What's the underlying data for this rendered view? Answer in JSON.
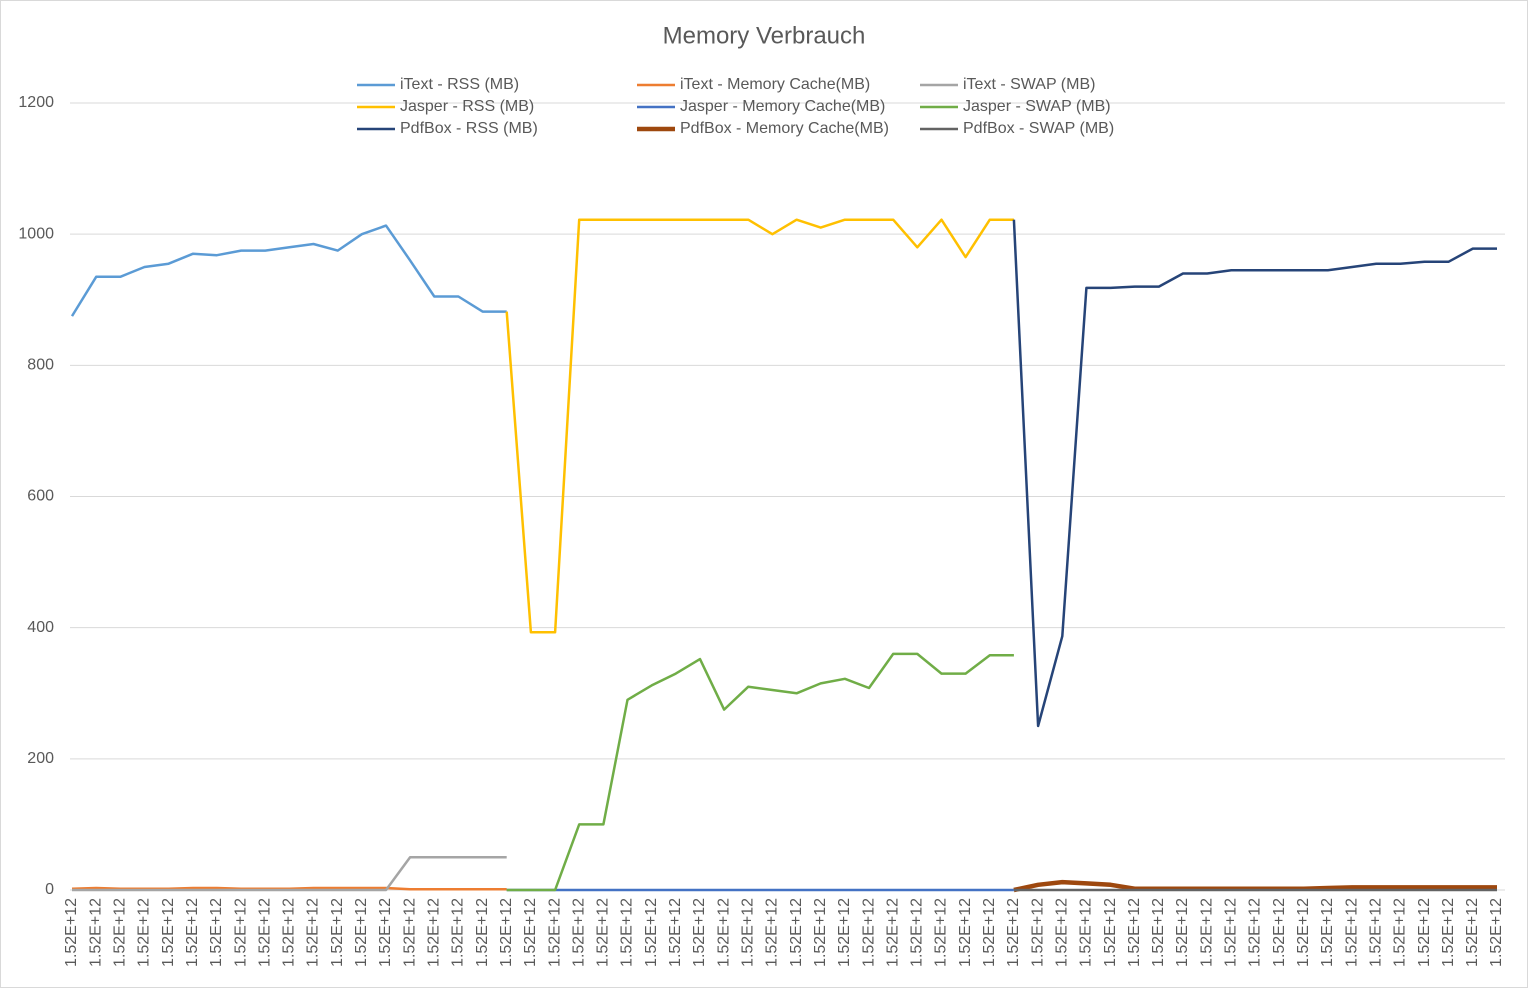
{
  "chart_data": {
    "type": "line",
    "title": "Memory Verbrauch",
    "categories": [
      "1.52E+12",
      "1.52E+12",
      "1.52E+12",
      "1.52E+12",
      "1.52E+12",
      "1.52E+12",
      "1.52E+12",
      "1.52E+12",
      "1.52E+12",
      "1.52E+12",
      "1.52E+12",
      "1.52E+12",
      "1.52E+12",
      "1.52E+12",
      "1.52E+12",
      "1.52E+12",
      "1.52E+12",
      "1.52E+12",
      "1.52E+12",
      "1.52E+12",
      "1.52E+12",
      "1.52E+12",
      "1.52E+12",
      "1.52E+12",
      "1.52E+12",
      "1.52E+12",
      "1.52E+12",
      "1.52E+12",
      "1.52E+12",
      "1.52E+12",
      "1.52E+12",
      "1.52E+12",
      "1.52E+12",
      "1.52E+12",
      "1.52E+12",
      "1.52E+12",
      "1.52E+12",
      "1.52E+12",
      "1.52E+12",
      "1.52E+12",
      "1.52E+12",
      "1.52E+12",
      "1.52E+12",
      "1.52E+12",
      "1.52E+12",
      "1.52E+12",
      "1.52E+12",
      "1.52E+12",
      "1.52E+12",
      "1.52E+12",
      "1.52E+12",
      "1.52E+12",
      "1.52E+12",
      "1.52E+12",
      "1.52E+12",
      "1.52E+12",
      "1.52E+12",
      "1.52E+12",
      "1.52E+12",
      "1.52E+12"
    ],
    "series": [
      {
        "name": "iText - RSS (MB)",
        "color": "#5b9bd5",
        "values": [
          875,
          935,
          935,
          950,
          955,
          970,
          968,
          975,
          975,
          980,
          985,
          975,
          1000,
          1013,
          960,
          905,
          905,
          882,
          882,
          null,
          null,
          null,
          null,
          null,
          null,
          null,
          null,
          null,
          null,
          null,
          null,
          null,
          null,
          null,
          null,
          null,
          null,
          null,
          null,
          null,
          null,
          null,
          null,
          null,
          null,
          null,
          null,
          null,
          null,
          null,
          null,
          null,
          null,
          null,
          null,
          null,
          null,
          null,
          null,
          null
        ]
      },
      {
        "name": "iText - Memory Cache(MB)",
        "color": "#ed7d31",
        "values": [
          2,
          3,
          2,
          2,
          2,
          3,
          3,
          2,
          2,
          2,
          3,
          3,
          3,
          3,
          1,
          1,
          1,
          1,
          1,
          null,
          null,
          null,
          null,
          null,
          null,
          null,
          null,
          null,
          null,
          null,
          null,
          null,
          null,
          null,
          null,
          null,
          null,
          null,
          null,
          null,
          null,
          null,
          null,
          null,
          null,
          null,
          null,
          null,
          null,
          null,
          null,
          null,
          null,
          null,
          null,
          null,
          null,
          null,
          null,
          null
        ]
      },
      {
        "name": "iText - SWAP (MB)",
        "color": "#a5a5a5",
        "values": [
          0,
          0,
          0,
          0,
          0,
          0,
          0,
          0,
          0,
          0,
          0,
          0,
          0,
          0,
          50,
          50,
          50,
          50,
          50,
          null,
          null,
          null,
          null,
          null,
          null,
          null,
          null,
          null,
          null,
          null,
          null,
          null,
          null,
          null,
          null,
          null,
          null,
          null,
          null,
          null,
          null,
          null,
          null,
          null,
          null,
          null,
          null,
          null,
          null,
          null,
          null,
          null,
          null,
          null,
          null,
          null,
          null,
          null,
          null,
          null
        ]
      },
      {
        "name": "Jasper - RSS (MB)",
        "color": "#ffc000",
        "values": [
          null,
          null,
          null,
          null,
          null,
          null,
          null,
          null,
          null,
          null,
          null,
          null,
          null,
          null,
          null,
          null,
          null,
          null,
          882,
          393,
          393,
          1022,
          1022,
          1022,
          1022,
          1022,
          1022,
          1022,
          1022,
          1000,
          1022,
          1010,
          1022,
          1022,
          1022,
          980,
          1022,
          965,
          1022,
          1022,
          null,
          null,
          null,
          null,
          null,
          null,
          null,
          null,
          null,
          null,
          null,
          null,
          null,
          null,
          null,
          null,
          null,
          null,
          null,
          null
        ]
      },
      {
        "name": "Jasper - Memory Cache(MB)",
        "color": "#4472c4",
        "values": [
          null,
          null,
          null,
          null,
          null,
          null,
          null,
          null,
          null,
          null,
          null,
          null,
          null,
          null,
          null,
          null,
          null,
          null,
          0,
          0,
          0,
          0,
          0,
          0,
          0,
          0,
          0,
          0,
          0,
          0,
          0,
          0,
          0,
          0,
          0,
          0,
          0,
          0,
          0,
          0,
          null,
          null,
          null,
          null,
          null,
          null,
          null,
          null,
          null,
          null,
          null,
          null,
          null,
          null,
          null,
          null,
          null,
          null,
          null,
          null
        ]
      },
      {
        "name": "Jasper - SWAP (MB)",
        "color": "#70ad47",
        "values": [
          null,
          null,
          null,
          null,
          null,
          null,
          null,
          null,
          null,
          null,
          null,
          null,
          null,
          null,
          null,
          null,
          null,
          null,
          0,
          0,
          0,
          100,
          100,
          290,
          312,
          330,
          352,
          275,
          310,
          305,
          300,
          315,
          322,
          308,
          360,
          360,
          330,
          330,
          358,
          358,
          null,
          null,
          null,
          null,
          null,
          null,
          null,
          null,
          null,
          null,
          null,
          null,
          null,
          null,
          null,
          null,
          null,
          null,
          null,
          null
        ]
      },
      {
        "name": "PdfBox - RSS (MB)",
        "color": "#264478",
        "values": [
          null,
          null,
          null,
          null,
          null,
          null,
          null,
          null,
          null,
          null,
          null,
          null,
          null,
          null,
          null,
          null,
          null,
          null,
          null,
          null,
          null,
          null,
          null,
          null,
          null,
          null,
          null,
          null,
          null,
          null,
          null,
          null,
          null,
          null,
          null,
          null,
          null,
          null,
          null,
          1022,
          250,
          387,
          918,
          918,
          920,
          920,
          940,
          940,
          945,
          945,
          945,
          945,
          945,
          950,
          955,
          955,
          958,
          958,
          978,
          978
        ]
      },
      {
        "name": "PdfBox - Memory Cache(MB)",
        "color": "#9e480e",
        "values": [
          null,
          null,
          null,
          null,
          null,
          null,
          null,
          null,
          null,
          null,
          null,
          null,
          null,
          null,
          null,
          null,
          null,
          null,
          null,
          null,
          null,
          null,
          null,
          null,
          null,
          null,
          null,
          null,
          null,
          null,
          null,
          null,
          null,
          null,
          null,
          null,
          null,
          null,
          null,
          0,
          8,
          12,
          10,
          8,
          2,
          2,
          2,
          2,
          2,
          2,
          2,
          2,
          3,
          4,
          4,
          4,
          4,
          4,
          4,
          4
        ]
      },
      {
        "name": "PdfBox - SWAP (MB)",
        "color": "#636363",
        "values": [
          null,
          null,
          null,
          null,
          null,
          null,
          null,
          null,
          null,
          null,
          null,
          null,
          null,
          null,
          null,
          null,
          null,
          null,
          null,
          null,
          null,
          null,
          null,
          null,
          null,
          null,
          null,
          null,
          null,
          null,
          null,
          null,
          null,
          null,
          null,
          null,
          null,
          null,
          null,
          0,
          0,
          0,
          0,
          0,
          0,
          0,
          0,
          0,
          0,
          0,
          0,
          0,
          0,
          0,
          0,
          0,
          0,
          0,
          0,
          0
        ]
      }
    ],
    "ylim": [
      0,
      1200
    ],
    "yticks": [
      0,
      200,
      400,
      600,
      800,
      1000,
      1200
    ],
    "grid": true
  }
}
